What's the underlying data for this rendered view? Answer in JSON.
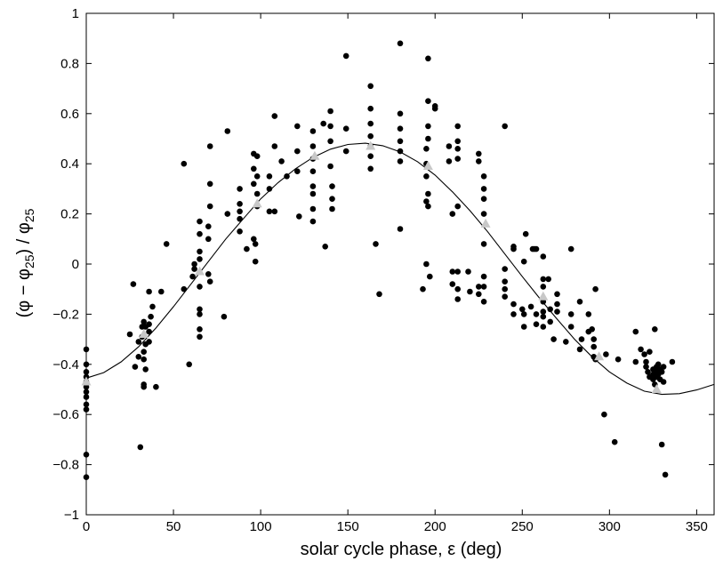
{
  "chart_data": {
    "type": "scatter",
    "title": "",
    "xlabel": "solar cycle phase, ε (deg)",
    "ylabel_parts": {
      "open": "(φ − φ",
      "sub1": "25",
      "mid": ") / φ",
      "sub2": "25"
    },
    "xlim": [
      0,
      360
    ],
    "ylim": [
      -1,
      1
    ],
    "xticks": [
      0,
      50,
      100,
      150,
      200,
      250,
      300,
      350
    ],
    "yticks": [
      -1,
      -0.8,
      -0.6,
      -0.4,
      -0.2,
      0,
      0.2,
      0.4,
      0.6,
      0.8,
      1
    ],
    "xtick_labels": [
      "0",
      "50",
      "100",
      "150",
      "200",
      "250",
      "300",
      "350"
    ],
    "ytick_labels": [
      "−1",
      "−0.8",
      "−0.6",
      "−0.4",
      "−0.2",
      "0",
      "0.2",
      "0.4",
      "0.6",
      "0.8",
      "1"
    ],
    "grid": false,
    "points": [
      [
        0,
        -0.34
      ],
      [
        0,
        -0.4
      ],
      [
        0,
        -0.43
      ],
      [
        0,
        -0.45
      ],
      [
        0,
        -0.47
      ],
      [
        0,
        -0.49
      ],
      [
        0,
        -0.51
      ],
      [
        0,
        -0.53
      ],
      [
        0,
        -0.56
      ],
      [
        0,
        -0.58
      ],
      [
        0,
        -0.76
      ],
      [
        0,
        -0.85
      ],
      [
        25,
        -0.28
      ],
      [
        27,
        -0.08
      ],
      [
        28,
        -0.41
      ],
      [
        30,
        -0.31
      ],
      [
        30,
        -0.37
      ],
      [
        31,
        -0.73
      ],
      [
        32,
        -0.25
      ],
      [
        32,
        -0.29
      ],
      [
        33,
        -0.23
      ],
      [
        33,
        -0.35
      ],
      [
        33,
        -0.38
      ],
      [
        33,
        -0.48
      ],
      [
        33,
        -0.49
      ],
      [
        34,
        -0.25
      ],
      [
        34,
        -0.32
      ],
      [
        34,
        -0.42
      ],
      [
        36,
        -0.11
      ],
      [
        36,
        -0.24
      ],
      [
        36,
        -0.27
      ],
      [
        36,
        -0.31
      ],
      [
        37,
        -0.21
      ],
      [
        38,
        -0.17
      ],
      [
        40,
        -0.49
      ],
      [
        43,
        -0.11
      ],
      [
        46,
        0.08
      ],
      [
        56,
        0.4
      ],
      [
        56,
        -0.1
      ],
      [
        59,
        -0.4
      ],
      [
        61,
        -0.05
      ],
      [
        62,
        0.0
      ],
      [
        62,
        -0.02
      ],
      [
        65,
        0.17
      ],
      [
        65,
        0.12
      ],
      [
        65,
        0.05
      ],
      [
        65,
        0.02
      ],
      [
        65,
        -0.09
      ],
      [
        65,
        -0.18
      ],
      [
        65,
        -0.2
      ],
      [
        65,
        -0.26
      ],
      [
        65,
        -0.29
      ],
      [
        70,
        0.15
      ],
      [
        70,
        0.1
      ],
      [
        70,
        -0.04
      ],
      [
        71,
        0.47
      ],
      [
        71,
        0.32
      ],
      [
        71,
        0.23
      ],
      [
        71,
        -0.07
      ],
      [
        79,
        -0.21
      ],
      [
        81,
        0.53
      ],
      [
        81,
        0.2
      ],
      [
        88,
        0.3
      ],
      [
        88,
        0.24
      ],
      [
        88,
        0.21
      ],
      [
        88,
        0.18
      ],
      [
        88,
        0.13
      ],
      [
        92,
        0.06
      ],
      [
        96,
        0.44
      ],
      [
        96,
        0.38
      ],
      [
        96,
        0.32
      ],
      [
        96,
        0.1
      ],
      [
        97,
        0.08
      ],
      [
        97,
        0.01
      ],
      [
        98,
        0.43
      ],
      [
        98,
        0.35
      ],
      [
        98,
        0.28
      ],
      [
        98,
        0.23
      ],
      [
        105,
        0.35
      ],
      [
        105,
        0.3
      ],
      [
        105,
        0.21
      ],
      [
        108,
        0.59
      ],
      [
        108,
        0.47
      ],
      [
        108,
        0.21
      ],
      [
        112,
        0.41
      ],
      [
        115,
        0.35
      ],
      [
        121,
        0.55
      ],
      [
        121,
        0.45
      ],
      [
        121,
        0.37
      ],
      [
        122,
        0.19
      ],
      [
        130,
        0.53
      ],
      [
        130,
        0.47
      ],
      [
        130,
        0.42
      ],
      [
        130,
        0.37
      ],
      [
        130,
        0.31
      ],
      [
        130,
        0.28
      ],
      [
        130,
        0.22
      ],
      [
        130,
        0.17
      ],
      [
        136,
        0.56
      ],
      [
        137,
        0.07
      ],
      [
        140,
        0.61
      ],
      [
        140,
        0.55
      ],
      [
        140,
        0.49
      ],
      [
        140,
        0.39
      ],
      [
        141,
        0.31
      ],
      [
        141,
        0.26
      ],
      [
        141,
        0.22
      ],
      [
        149,
        0.83
      ],
      [
        149,
        0.54
      ],
      [
        149,
        0.45
      ],
      [
        163,
        0.71
      ],
      [
        163,
        0.62
      ],
      [
        163,
        0.56
      ],
      [
        163,
        0.51
      ],
      [
        163,
        0.47
      ],
      [
        163,
        0.43
      ],
      [
        163,
        0.38
      ],
      [
        166,
        0.08
      ],
      [
        168,
        -0.12
      ],
      [
        180,
        0.88
      ],
      [
        180,
        0.6
      ],
      [
        180,
        0.54
      ],
      [
        180,
        0.49
      ],
      [
        180,
        0.45
      ],
      [
        180,
        0.41
      ],
      [
        180,
        0.14
      ],
      [
        193,
        -0.1
      ],
      [
        195,
        0.46
      ],
      [
        195,
        0.4
      ],
      [
        195,
        0.35
      ],
      [
        195,
        0.25
      ],
      [
        195,
        0.0
      ],
      [
        196,
        0.82
      ],
      [
        196,
        0.65
      ],
      [
        196,
        0.55
      ],
      [
        196,
        0.5
      ],
      [
        196,
        0.28
      ],
      [
        196,
        0.23
      ],
      [
        197,
        -0.05
      ],
      [
        200,
        0.63
      ],
      [
        200,
        0.62
      ],
      [
        208,
        0.47
      ],
      [
        208,
        0.41
      ],
      [
        210,
        0.2
      ],
      [
        210,
        -0.03
      ],
      [
        210,
        -0.08
      ],
      [
        213,
        0.55
      ],
      [
        213,
        0.49
      ],
      [
        213,
        0.46
      ],
      [
        213,
        0.42
      ],
      [
        213,
        0.23
      ],
      [
        213,
        -0.03
      ],
      [
        213,
        -0.1
      ],
      [
        213,
        -0.14
      ],
      [
        219,
        -0.03
      ],
      [
        220,
        -0.11
      ],
      [
        225,
        0.44
      ],
      [
        225,
        0.41
      ],
      [
        225,
        -0.09
      ],
      [
        225,
        -0.12
      ],
      [
        228,
        0.35
      ],
      [
        228,
        0.3
      ],
      [
        228,
        0.26
      ],
      [
        228,
        0.2
      ],
      [
        228,
        0.08
      ],
      [
        228,
        -0.05
      ],
      [
        228,
        -0.09
      ],
      [
        228,
        -0.15
      ],
      [
        240,
        0.55
      ],
      [
        240,
        -0.02
      ],
      [
        240,
        -0.07
      ],
      [
        240,
        -0.1
      ],
      [
        240,
        -0.13
      ],
      [
        245,
        0.07
      ],
      [
        245,
        0.06
      ],
      [
        245,
        -0.16
      ],
      [
        245,
        -0.2
      ],
      [
        250,
        -0.18
      ],
      [
        251,
        0.01
      ],
      [
        251,
        -0.2
      ],
      [
        251,
        -0.25
      ],
      [
        252,
        0.12
      ],
      [
        255,
        -0.17
      ],
      [
        256,
        0.06
      ],
      [
        257,
        0.06
      ],
      [
        258,
        0.06
      ],
      [
        258,
        -0.2
      ],
      [
        258,
        -0.24
      ],
      [
        262,
        0.03
      ],
      [
        262,
        -0.06
      ],
      [
        262,
        -0.09
      ],
      [
        262,
        -0.15
      ],
      [
        262,
        -0.19
      ],
      [
        262,
        -0.21
      ],
      [
        262,
        -0.25
      ],
      [
        265,
        -0.06
      ],
      [
        266,
        -0.18
      ],
      [
        266,
        -0.23
      ],
      [
        268,
        -0.3
      ],
      [
        270,
        -0.12
      ],
      [
        270,
        -0.16
      ],
      [
        270,
        -0.19
      ],
      [
        275,
        -0.31
      ],
      [
        278,
        0.06
      ],
      [
        278,
        -0.2
      ],
      [
        278,
        -0.25
      ],
      [
        283,
        -0.34
      ],
      [
        283,
        -0.15
      ],
      [
        284,
        -0.3
      ],
      [
        288,
        -0.2
      ],
      [
        288,
        -0.27
      ],
      [
        290,
        -0.26
      ],
      [
        291,
        -0.3
      ],
      [
        291,
        -0.33
      ],
      [
        291,
        -0.37
      ],
      [
        292,
        -0.1
      ],
      [
        292,
        -0.38
      ],
      [
        297,
        -0.6
      ],
      [
        298,
        -0.36
      ],
      [
        303,
        -0.71
      ],
      [
        305,
        -0.38
      ],
      [
        315,
        -0.27
      ],
      [
        315,
        -0.39
      ],
      [
        318,
        -0.34
      ],
      [
        320,
        -0.36
      ],
      [
        321,
        -0.39
      ],
      [
        321,
        -0.41
      ],
      [
        322,
        -0.43
      ],
      [
        323,
        -0.35
      ],
      [
        323,
        -0.45
      ],
      [
        325,
        -0.42
      ],
      [
        325,
        -0.44
      ],
      [
        325,
        -0.46
      ],
      [
        326,
        -0.26
      ],
      [
        326,
        -0.48
      ],
      [
        327,
        -0.41
      ],
      [
        327,
        -0.43
      ],
      [
        327,
        -0.45
      ],
      [
        328,
        -0.4
      ],
      [
        328,
        -0.44
      ],
      [
        329,
        -0.42
      ],
      [
        329,
        -0.46
      ],
      [
        330,
        -0.43
      ],
      [
        330,
        -0.72
      ],
      [
        331,
        -0.41
      ],
      [
        331,
        -0.47
      ],
      [
        332,
        -0.84
      ],
      [
        336,
        -0.39
      ]
    ],
    "markers": [
      [
        0,
        -0.47
      ],
      [
        33,
        -0.28
      ],
      [
        65,
        -0.03
      ],
      [
        98,
        0.24
      ],
      [
        131,
        0.43
      ],
      [
        163,
        0.47
      ],
      [
        196,
        0.39
      ],
      [
        229,
        0.16
      ],
      [
        262,
        -0.13
      ],
      [
        294,
        -0.37
      ],
      [
        327,
        -0.5
      ]
    ],
    "fit_curve": {
      "form": "sinusoid",
      "x": [
        0,
        10,
        20,
        30,
        40,
        50,
        60,
        70,
        80,
        90,
        100,
        110,
        120,
        130,
        140,
        150,
        160,
        170,
        180,
        190,
        200,
        210,
        220,
        230,
        240,
        250,
        260,
        270,
        280,
        290,
        300,
        310,
        320,
        330,
        340,
        350,
        360
      ],
      "y": [
        -0.455,
        -0.433,
        -0.39,
        -0.33,
        -0.255,
        -0.17,
        -0.08,
        0.01,
        0.1,
        0.18,
        0.26,
        0.325,
        0.38,
        0.425,
        0.458,
        0.477,
        0.482,
        0.472,
        0.447,
        0.408,
        0.355,
        0.288,
        0.213,
        0.13,
        0.04,
        -0.05,
        -0.137,
        -0.22,
        -0.3,
        -0.37,
        -0.43,
        -0.475,
        -0.507,
        -0.52,
        -0.517,
        -0.502,
        -0.48
      ]
    }
  }
}
